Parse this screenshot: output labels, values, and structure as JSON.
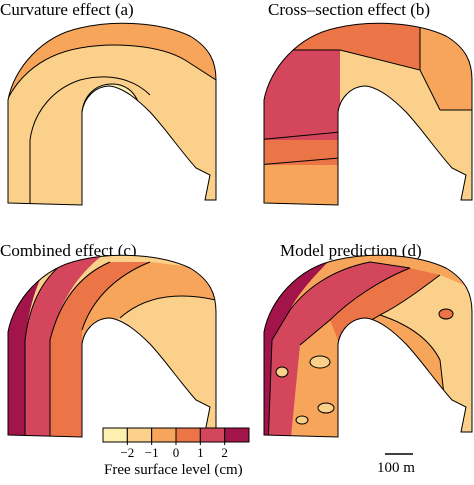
{
  "panels": [
    {
      "id": "a",
      "title": "Curvature effect (a)"
    },
    {
      "id": "b",
      "title": "Cross–section effect (b)"
    },
    {
      "id": "c",
      "title": "Combined effect (c)"
    },
    {
      "id": "d",
      "title": "Model prediction (d)"
    }
  ],
  "colorbar": {
    "title": "Free surface level (cm)",
    "ticks": [
      "−2",
      "−1",
      "0",
      "1",
      "2"
    ],
    "colors": [
      "#fdf0b0",
      "#fad08a",
      "#f6a55a",
      "#ec7548",
      "#d4465b",
      "#a3154a"
    ]
  },
  "scalebar": {
    "label": "100 m"
  }
}
